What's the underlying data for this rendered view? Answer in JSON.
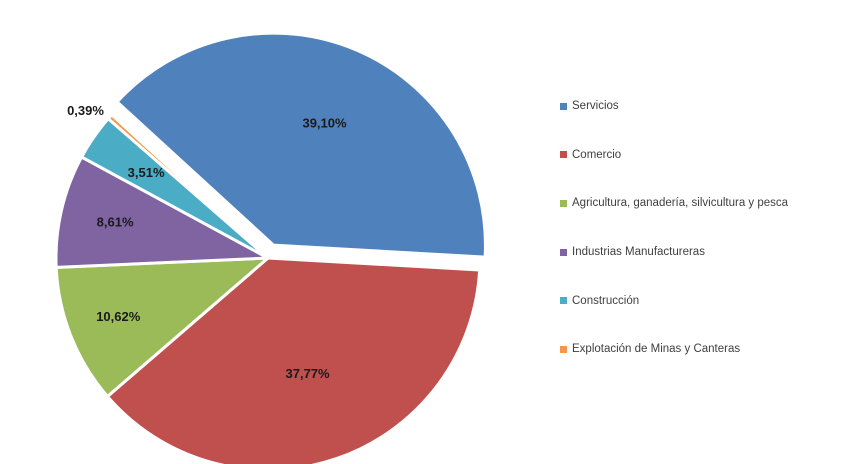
{
  "chart_data": {
    "type": "pie",
    "title": "",
    "slices": [
      {
        "label": "Servicios",
        "value": 39.1,
        "display": "39,10%",
        "color": "#4f81bd"
      },
      {
        "label": "Comercio",
        "value": 37.77,
        "display": "37,77%",
        "color": "#c0504d"
      },
      {
        "label": "Agricultura, ganadería, silvicultura y pesca",
        "value": 10.62,
        "display": "10,62%",
        "color": "#9bbb59"
      },
      {
        "label": "Industrias Manufactureras",
        "value": 8.61,
        "display": "8,61%",
        "color": "#8064a2"
      },
      {
        "label": "Construcción",
        "value": 3.51,
        "display": "3,51%",
        "color": "#4bacc6"
      },
      {
        "label": "Explotación de Minas y Canteras",
        "value": 0.39,
        "display": "0,39%",
        "color": "#f79646"
      }
    ],
    "exploded": [
      "Servicios"
    ],
    "legend_position": "right"
  }
}
